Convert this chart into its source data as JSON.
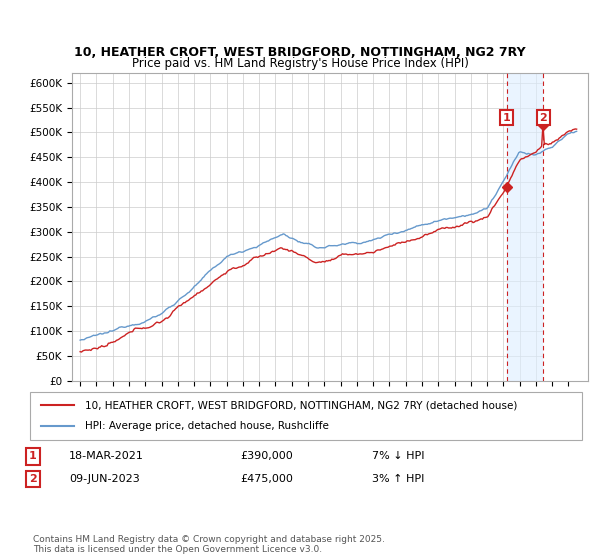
{
  "title": "10, HEATHER CROFT, WEST BRIDGFORD, NOTTINGHAM, NG2 7RY",
  "subtitle": "Price paid vs. HM Land Registry's House Price Index (HPI)",
  "ylim": [
    0,
    620000
  ],
  "yticks": [
    0,
    50000,
    100000,
    150000,
    200000,
    250000,
    300000,
    350000,
    400000,
    450000,
    500000,
    550000,
    600000
  ],
  "ytick_labels": [
    "£0",
    "£50K",
    "£100K",
    "£150K",
    "£200K",
    "£250K",
    "£300K",
    "£350K",
    "£400K",
    "£450K",
    "£500K",
    "£550K",
    "£600K"
  ],
  "background_color": "#ffffff",
  "grid_color": "#cccccc",
  "hpi_color": "#6699cc",
  "price_color": "#cc2222",
  "transaction1_date": "18-MAR-2021",
  "transaction1_price": 390000,
  "transaction1_hpi_diff": "7% ↓ HPI",
  "transaction1_x": 2021.2,
  "transaction2_date": "09-JUN-2023",
  "transaction2_price": 475000,
  "transaction2_hpi_diff": "3% ↑ HPI",
  "transaction2_x": 2023.45,
  "legend_label1": "10, HEATHER CROFT, WEST BRIDGFORD, NOTTINGHAM, NG2 7RY (detached house)",
  "legend_label2": "HPI: Average price, detached house, Rushcliffe",
  "footer": "Contains HM Land Registry data © Crown copyright and database right 2025.\nThis data is licensed under the Open Government Licence v3.0.",
  "xlim_left": 1994.5,
  "xlim_right": 2026.2
}
